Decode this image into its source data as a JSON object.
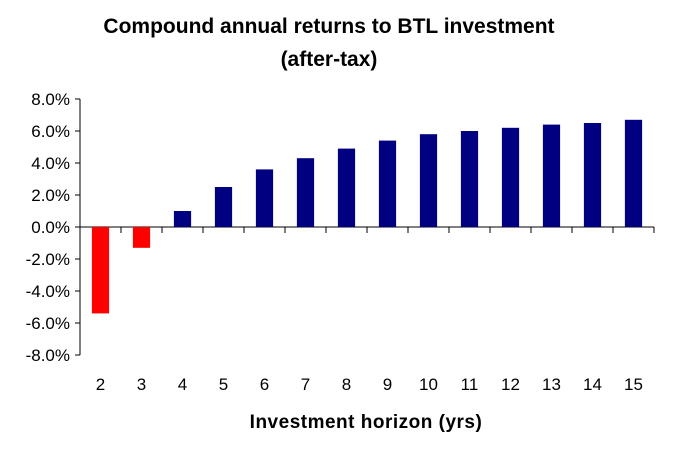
{
  "chart_data": {
    "type": "bar",
    "title_line1": "Compound annual returns to BTL investment",
    "title_line2": "(after-tax)",
    "xlabel": "Investment horizon (yrs)",
    "ylabel": "",
    "categories": [
      "2",
      "3",
      "4",
      "5",
      "6",
      "7",
      "8",
      "9",
      "10",
      "11",
      "12",
      "13",
      "14",
      "15"
    ],
    "values": [
      -5.4,
      -1.3,
      1.0,
      2.5,
      3.6,
      4.3,
      4.9,
      5.4,
      5.8,
      6.0,
      6.2,
      6.4,
      6.5,
      6.7
    ],
    "ylim": [
      -8.0,
      8.0
    ],
    "yticks": [
      8.0,
      6.0,
      4.0,
      2.0,
      0.0,
      -2.0,
      -4.0,
      -6.0,
      -8.0
    ],
    "ytick_labels": [
      "8.0%",
      "6.0%",
      "4.0%",
      "2.0%",
      "0.0%",
      "-2.0%",
      "-4.0%",
      "-6.0%",
      "-8.0%"
    ],
    "colors": {
      "positive": "#000080",
      "negative": "#ff0000",
      "axis": "#000000"
    },
    "grid": false,
    "legend": "none"
  }
}
